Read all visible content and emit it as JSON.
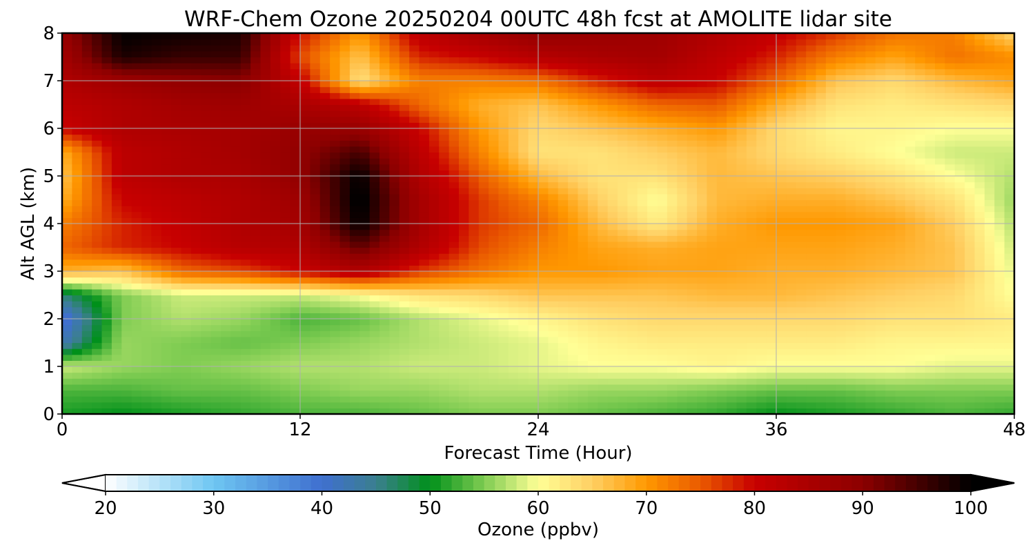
{
  "chart_data": {
    "type": "heatmap",
    "title": "WRF-Chem Ozone  20250204 00UTC 48h fcst at AMOLITE lidar site",
    "xlabel": "Forecast Time (Hour)",
    "ylabel": "Alt AGL (km)",
    "xlim": [
      0,
      48
    ],
    "ylim": [
      0,
      8
    ],
    "x_ticks": [
      0,
      12,
      24,
      36,
      48
    ],
    "y_ticks": [
      0,
      1,
      2,
      3,
      4,
      5,
      6,
      7,
      8
    ],
    "grid": true,
    "x": [
      0,
      3,
      6,
      9,
      12,
      15,
      18,
      21,
      24,
      27,
      30,
      33,
      36,
      39,
      42,
      45,
      48
    ],
    "y": [
      0,
      0.5,
      1,
      1.5,
      2,
      2.5,
      3,
      3.5,
      4,
      4.5,
      5,
      5.5,
      6,
      6.5,
      7,
      7.5,
      8
    ],
    "z_units": "ppbv",
    "z": [
      [
        51,
        50,
        51,
        52,
        53,
        53,
        54,
        55,
        55,
        54,
        53,
        52,
        50,
        51,
        52,
        53,
        52
      ],
      [
        53,
        53,
        54,
        54,
        55,
        56,
        56,
        57,
        57,
        56,
        56,
        55,
        54,
        54,
        55,
        55,
        55
      ],
      [
        58,
        56,
        55,
        56,
        57,
        57,
        58,
        58,
        59,
        60,
        60,
        61,
        60,
        60,
        60,
        59,
        59
      ],
      [
        42,
        56,
        55,
        54,
        55,
        56,
        57,
        58,
        59,
        61,
        62,
        62,
        62,
        62,
        61,
        61,
        61
      ],
      [
        38,
        55,
        57,
        56,
        53,
        54,
        57,
        59,
        61,
        63,
        64,
        64,
        64,
        64,
        63,
        63,
        62
      ],
      [
        46,
        55,
        58,
        58,
        58,
        60,
        63,
        64,
        66,
        66,
        66,
        67,
        67,
        66,
        65,
        64,
        60
      ],
      [
        68,
        66,
        74,
        76,
        80,
        84,
        77,
        73,
        70,
        70,
        69,
        69,
        68,
        68,
        67,
        66,
        59
      ],
      [
        74,
        78,
        80,
        83,
        84,
        93,
        84,
        76,
        72,
        69,
        68,
        69,
        69,
        69,
        68,
        66,
        58
      ],
      [
        72,
        78,
        81,
        84,
        86,
        100,
        86,
        77,
        74,
        67,
        62,
        68,
        70,
        70,
        69,
        65,
        57
      ],
      [
        68,
        80,
        82,
        84,
        87,
        101,
        86,
        77,
        72,
        65,
        60,
        67,
        68,
        68,
        66,
        63,
        56
      ],
      [
        66,
        82,
        84,
        85,
        89,
        100,
        84,
        75,
        67,
        63,
        63,
        67,
        66,
        65,
        63,
        60,
        57
      ],
      [
        68,
        82,
        84,
        86,
        89,
        95,
        82,
        72,
        63,
        63,
        65,
        67,
        64,
        62,
        60,
        58,
        58
      ],
      [
        80,
        84,
        85,
        86,
        88,
        88,
        80,
        70,
        64,
        66,
        68,
        70,
        64,
        61,
        61,
        60,
        60
      ],
      [
        82,
        84,
        86,
        87,
        85,
        82,
        74,
        68,
        66,
        70,
        74,
        75,
        68,
        63,
        62,
        63,
        64
      ],
      [
        84,
        87,
        89,
        90,
        81,
        63,
        72,
        72,
        73,
        78,
        82,
        80,
        74,
        66,
        64,
        67,
        69
      ],
      [
        86,
        98,
        96,
        96,
        76,
        66,
        78,
        80,
        83,
        85,
        86,
        82,
        78,
        72,
        69,
        73,
        71
      ],
      [
        88,
        100,
        99,
        98,
        79,
        70,
        82,
        86,
        89,
        88,
        87,
        84,
        81,
        77,
        73,
        72,
        64
      ]
    ],
    "colorbar": {
      "label": "Ozone  (ppbv)",
      "min": 20,
      "max": 100,
      "ticks": [
        20,
        30,
        40,
        50,
        60,
        70,
        80,
        90,
        100
      ],
      "extend": "both",
      "stops": [
        {
          "v": 20,
          "c": "#ffffff"
        },
        {
          "v": 30,
          "c": "#6ec6f2"
        },
        {
          "v": 40,
          "c": "#3f6fcf"
        },
        {
          "v": 45,
          "c": "#3b7f8f"
        },
        {
          "v": 50,
          "c": "#00901a"
        },
        {
          "v": 55,
          "c": "#7fcc52"
        },
        {
          "v": 60,
          "c": "#ffff96"
        },
        {
          "v": 65,
          "c": "#ffcf63"
        },
        {
          "v": 70,
          "c": "#ff9800"
        },
        {
          "v": 75,
          "c": "#ea5a00"
        },
        {
          "v": 80,
          "c": "#c80000"
        },
        {
          "v": 90,
          "c": "#8c0000"
        },
        {
          "v": 100,
          "c": "#000000"
        }
      ]
    },
    "colors": {
      "grid": "#b0b0b0",
      "frame": "#000000",
      "under": "#ffffff",
      "over": "#000000"
    }
  }
}
